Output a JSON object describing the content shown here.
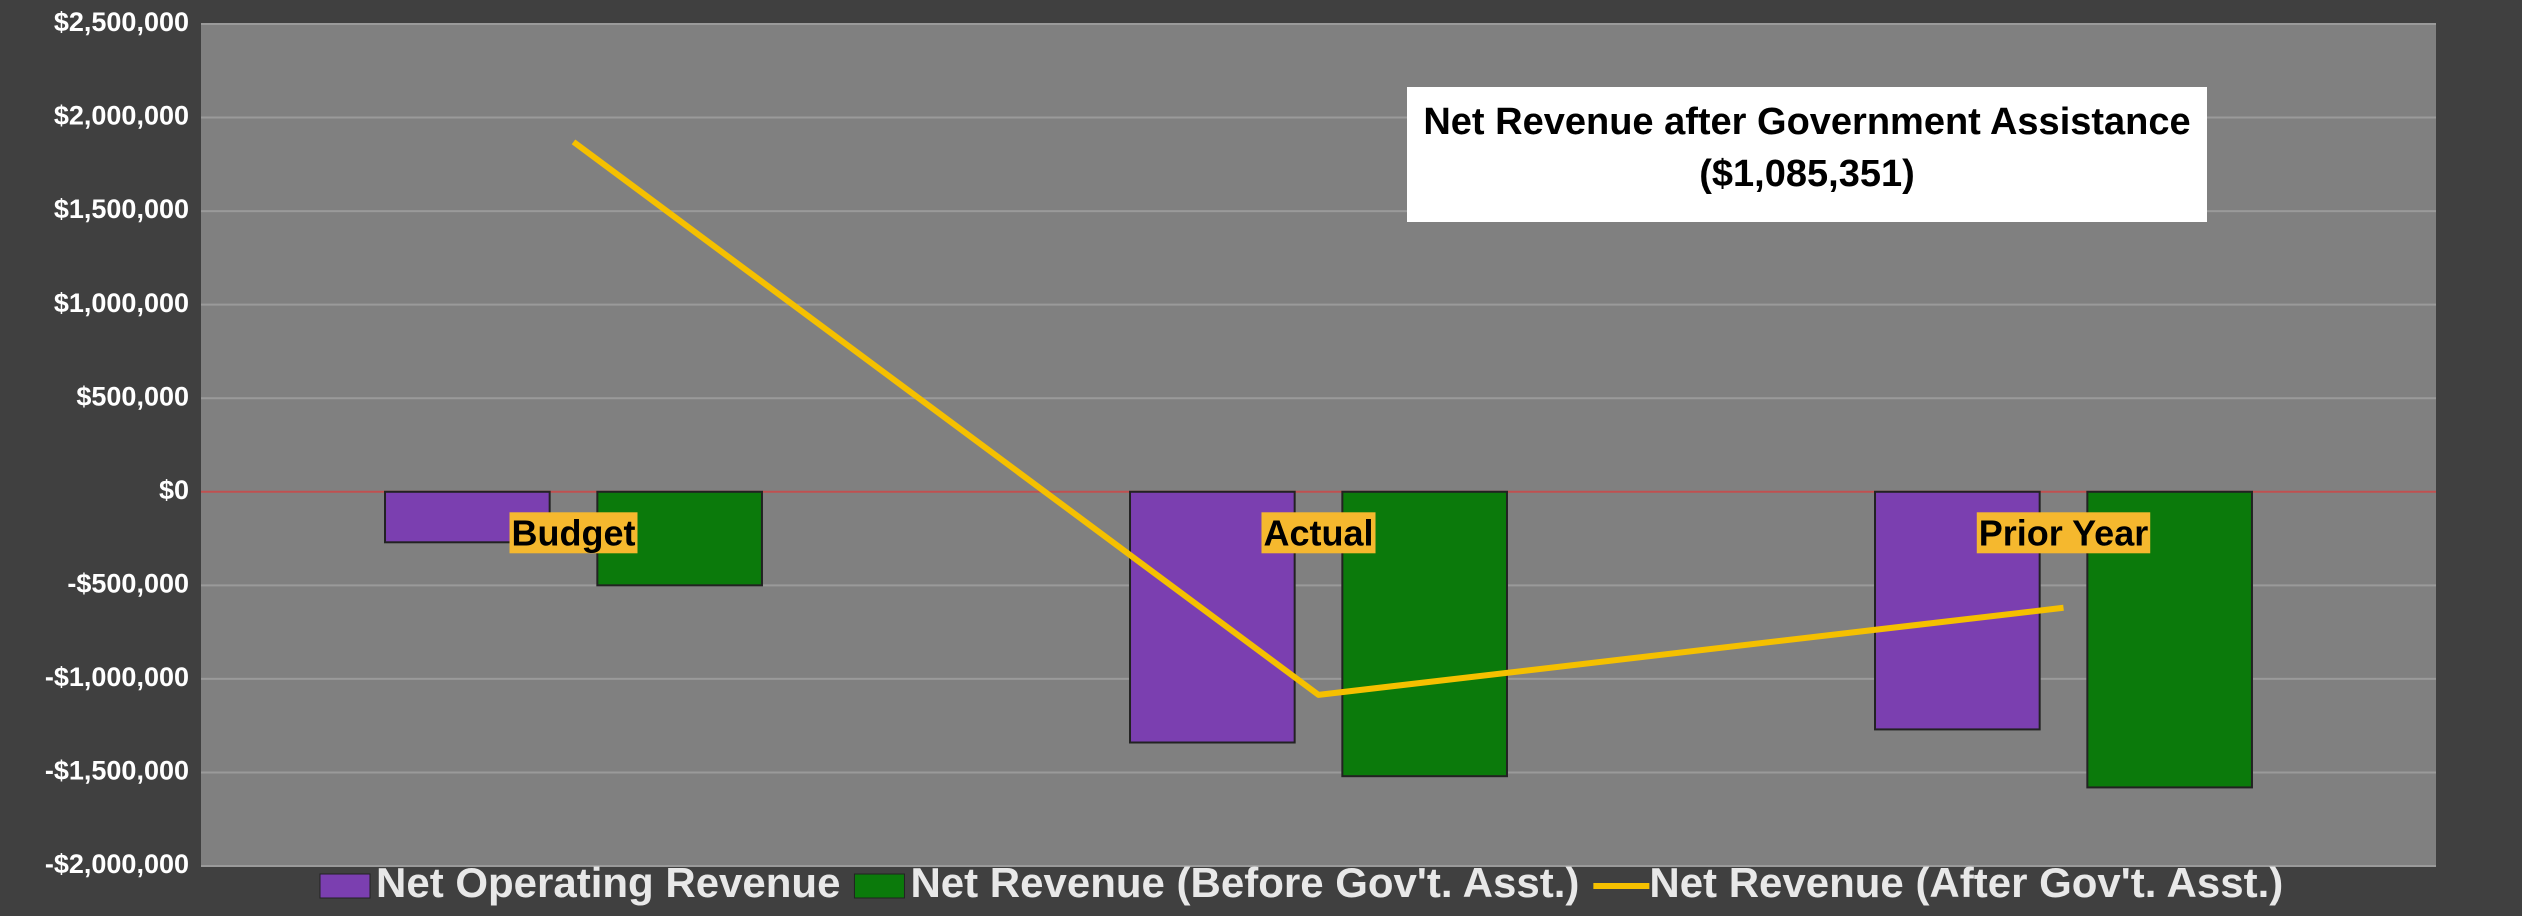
{
  "chart_data": {
    "type": "bar",
    "categories": [
      "Budget",
      "Actual",
      "Prior Year"
    ],
    "series": [
      {
        "name": "Net Operating Revenue",
        "type": "bar",
        "color": "#7b3fb0",
        "values": [
          -270000,
          -1340000,
          -1270000
        ]
      },
      {
        "name": "Net Revenue (Before Gov't. Asst.)",
        "type": "bar",
        "color": "#0b7a0b",
        "values": [
          -500000,
          -1520000,
          -1580000
        ]
      },
      {
        "name": "Net Revenue (After Gov't. Asst.)",
        "type": "line",
        "color": "#f5c000",
        "values": [
          1870000,
          -1085351,
          -620000
        ]
      }
    ],
    "annotation": [
      "Net Revenue after Government Assistance",
      "($1,085,351)"
    ],
    "ylim": [
      -2000000,
      2500000
    ],
    "yticks": [
      {
        "value": -2000000,
        "label": "-$2,000,000"
      },
      {
        "value": -1500000,
        "label": "-$1,500,000"
      },
      {
        "value": -1000000,
        "label": "-$1,000,000"
      },
      {
        "value": -500000,
        "label": "-$500,000"
      },
      {
        "value": 0,
        "label": "$0"
      },
      {
        "value": 500000,
        "label": "$500,000"
      },
      {
        "value": 1000000,
        "label": "$1,000,000"
      },
      {
        "value": 1500000,
        "label": "$1,500,000"
      },
      {
        "value": 2000000,
        "label": "$2,000,000"
      },
      {
        "value": 2500000,
        "label": "$2,500,000"
      }
    ],
    "grid": true,
    "legend": "bottom"
  }
}
